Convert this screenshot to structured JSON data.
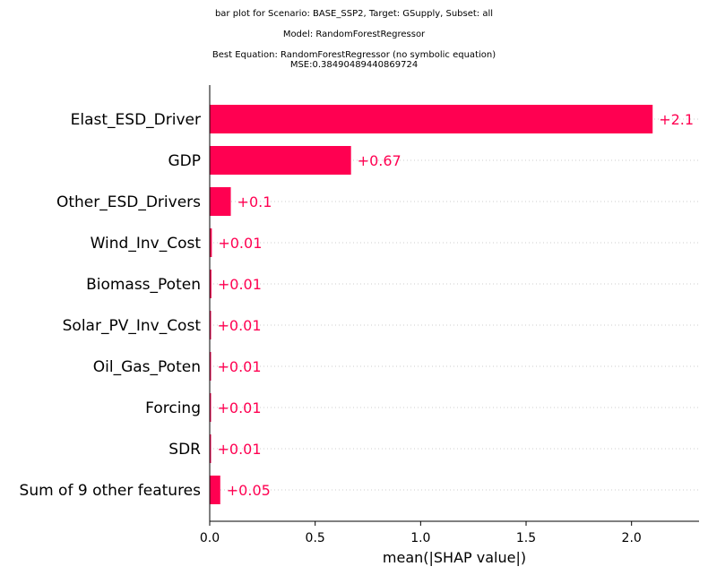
{
  "chart_data": {
    "type": "bar",
    "orientation": "horizontal",
    "title_lines": [
      "bar plot for Scenario: BASE_SSP2, Target: GSupply, Subset: all",
      "Model: RandomForestRegressor",
      "Best Equation: RandomForestRegressor (no symbolic equation)",
      "MSE:0.38490489440869724"
    ],
    "categories": [
      "Elast_ESD_Driver",
      "GDP",
      "Other_ESD_Drivers",
      "Wind_Inv_Cost",
      "Biomass_Poten",
      "Solar_PV_Inv_Cost",
      "Oil_Gas_Poten",
      "Forcing",
      "SDR",
      "Sum of 9 other features"
    ],
    "values": [
      2.1,
      0.67,
      0.1,
      0.01,
      0.008,
      0.006,
      0.006,
      0.006,
      0.006,
      0.05
    ],
    "value_labels": [
      "+2.1",
      "+0.67",
      "+0.1",
      "+0.01",
      "+0.01",
      "+0.01",
      "+0.01",
      "+0.01",
      "+0.01",
      "+0.05"
    ],
    "xlabel": "mean(|SHAP value|)",
    "ylabel": "",
    "xlim": [
      0,
      2.32
    ],
    "xticks": [
      "0.0",
      "0.5",
      "1.0",
      "1.5",
      "2.0"
    ],
    "xtick_values": [
      0,
      0.5,
      1.0,
      1.5,
      2.0
    ],
    "bar_color": "#ff0051",
    "grid": "dotted horizontal row guides"
  }
}
